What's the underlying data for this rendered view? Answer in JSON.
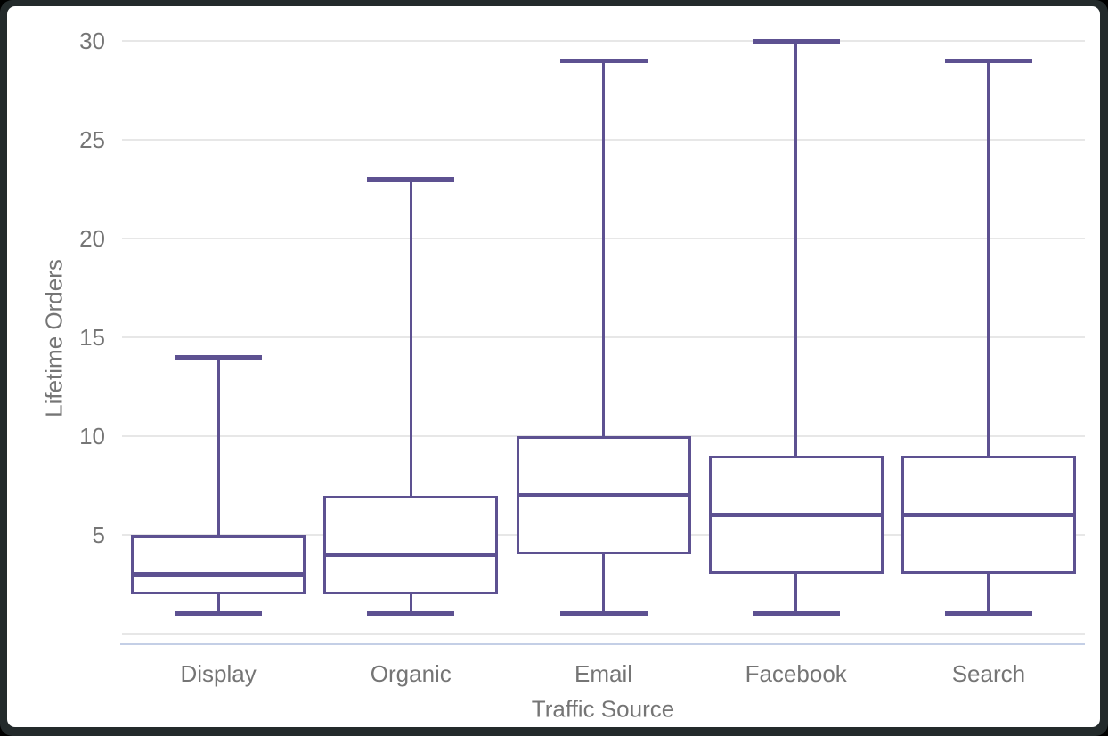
{
  "colors": {
    "box_stroke": "#5d5191",
    "gridline": "#e7e7e7",
    "axis_line": "#c4cfe6",
    "label_text": "#757575",
    "frame_background": "#232a2b",
    "plot_background": "#ffffff"
  },
  "chart_data": {
    "type": "box",
    "title": "",
    "xlabel": "Traffic Source",
    "ylabel": "Lifetime Orders",
    "categories": [
      "Display",
      "Organic",
      "Email",
      "Facebook",
      "Search"
    ],
    "series": [
      {
        "name": "Display",
        "min": 1,
        "q1": 2,
        "median": 3,
        "q3": 5,
        "max": 14
      },
      {
        "name": "Organic",
        "min": 1,
        "q1": 2,
        "median": 4,
        "q3": 7,
        "max": 23
      },
      {
        "name": "Email",
        "min": 1,
        "q1": 4,
        "median": 7,
        "q3": 10,
        "max": 29
      },
      {
        "name": "Facebook",
        "min": 1,
        "q1": 3,
        "median": 6,
        "q3": 9,
        "max": 30
      },
      {
        "name": "Search",
        "min": 1,
        "q1": 3,
        "median": 6,
        "q3": 9,
        "max": 29
      }
    ],
    "ylim": [
      0,
      30
    ],
    "yticks": [
      5,
      10,
      15,
      20,
      25,
      30
    ],
    "ygrid": [
      0,
      5,
      10,
      15,
      20,
      25,
      30
    ],
    "grid": true,
    "legend": "none"
  }
}
